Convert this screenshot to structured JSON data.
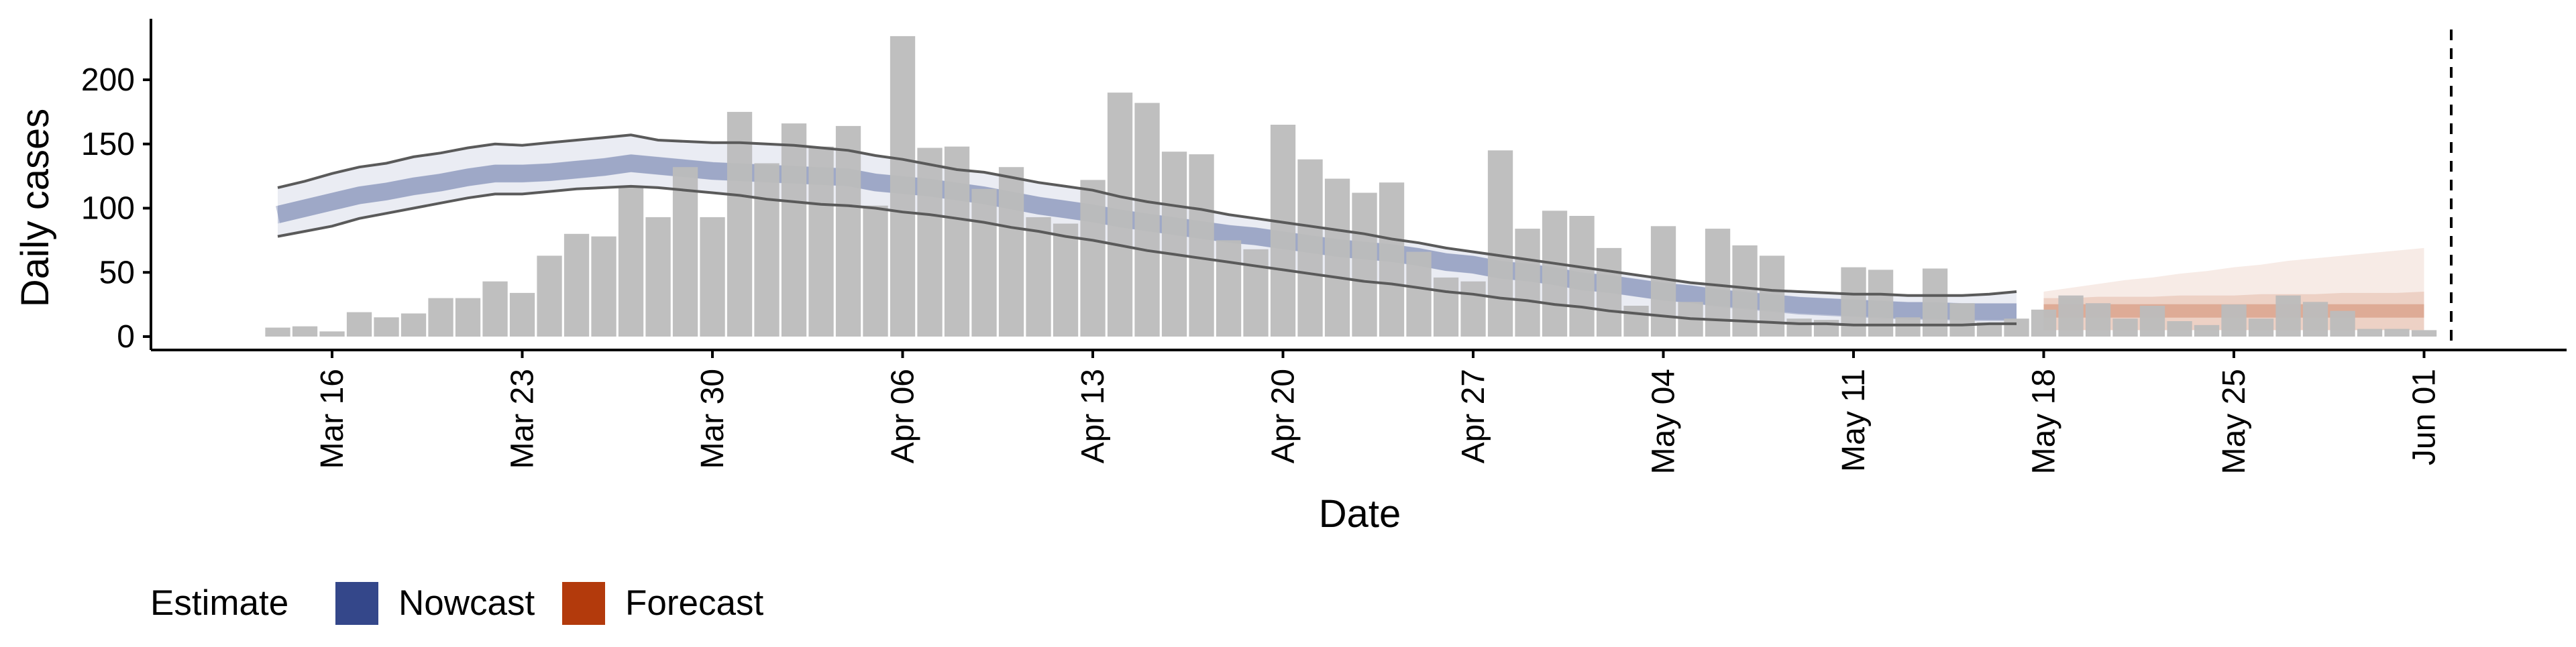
{
  "chart_data": {
    "type": "bar",
    "ylabel": "Daily cases",
    "xlabel": "Date",
    "ylim": [
      0,
      240
    ],
    "yticks": [
      0,
      50,
      100,
      150,
      200
    ],
    "x_start": "Mar 14",
    "xtick_labels": [
      "Mar 16",
      "Mar 23",
      "Mar 30",
      "Apr 06",
      "Apr 13",
      "Apr 20",
      "Apr 27",
      "May 04",
      "May 11",
      "May 18",
      "May 25",
      "Jun 01"
    ],
    "grid": false,
    "vline": {
      "x": "Jun 02",
      "style": "dashed"
    },
    "colors": {
      "nowcast": "#34478a",
      "forecast": "#b33a0c",
      "bars": "#bcbcbc",
      "ci_line": "#5a5a5a"
    },
    "cases": [
      7,
      8,
      4,
      19,
      15,
      18,
      30,
      30,
      43,
      34,
      63,
      80,
      78,
      116,
      93,
      132,
      93,
      175,
      135,
      166,
      148,
      164,
      102,
      234,
      147,
      148,
      115,
      132,
      93,
      88,
      122,
      190,
      182,
      144,
      142,
      75,
      68,
      165,
      138,
      123,
      112,
      120,
      66,
      46,
      43,
      145,
      84,
      98,
      94,
      69,
      24,
      86,
      27,
      84,
      71,
      63,
      14,
      13,
      54,
      52,
      15,
      53,
      26,
      11,
      14,
      21,
      32,
      26,
      14,
      24,
      12,
      9,
      25,
      14,
      32,
      27,
      20,
      6,
      6,
      5
    ],
    "nowcast": {
      "median": [
        95,
        100,
        105,
        110,
        113,
        117,
        120,
        124,
        127,
        127,
        128,
        130,
        132,
        135,
        133,
        131,
        129,
        128,
        127,
        126,
        125,
        124,
        120,
        118,
        116,
        113,
        110,
        106,
        102,
        99,
        96,
        92,
        89,
        86,
        83,
        80,
        78,
        75,
        72,
        69,
        67,
        65,
        62,
        58,
        56,
        52,
        50,
        47,
        43,
        41,
        38,
        35,
        33,
        30,
        28,
        26,
        24,
        23,
        22,
        21,
        20,
        20,
        19,
        19,
        19
      ],
      "inner_low": [
        88,
        93,
        98,
        103,
        106,
        110,
        113,
        117,
        120,
        120,
        121,
        123,
        125,
        128,
        126,
        124,
        122,
        121,
        120,
        119,
        118,
        117,
        113,
        111,
        109,
        106,
        103,
        99,
        95,
        92,
        89,
        85,
        82,
        79,
        76,
        73,
        71,
        68,
        65,
        62,
        60,
        58,
        55,
        51,
        49,
        45,
        43,
        40,
        36,
        34,
        31,
        28,
        26,
        24,
        22,
        20,
        18,
        17,
        16,
        15,
        14,
        14,
        13,
        13,
        13
      ],
      "inner_high": [
        102,
        107,
        112,
        117,
        120,
        124,
        127,
        131,
        134,
        134,
        135,
        137,
        139,
        142,
        140,
        138,
        136,
        135,
        134,
        133,
        132,
        131,
        127,
        125,
        123,
        120,
        117,
        113,
        109,
        106,
        103,
        99,
        96,
        93,
        90,
        87,
        85,
        82,
        79,
        76,
        74,
        72,
        69,
        65,
        63,
        59,
        57,
        54,
        50,
        48,
        45,
        42,
        40,
        37,
        35,
        33,
        31,
        30,
        29,
        28,
        27,
        27,
        26,
        26,
        26
      ],
      "upper": [
        116,
        121,
        127,
        132,
        135,
        140,
        143,
        147,
        150,
        149,
        151,
        153,
        155,
        157,
        153,
        152,
        151,
        151,
        150,
        149,
        147,
        145,
        141,
        138,
        134,
        130,
        128,
        124,
        120,
        117,
        114,
        109,
        105,
        102,
        99,
        95,
        92,
        89,
        86,
        83,
        80,
        76,
        73,
        69,
        66,
        63,
        60,
        57,
        54,
        51,
        48,
        45,
        42,
        40,
        38,
        36,
        35,
        34,
        33,
        33,
        32,
        32,
        32,
        33,
        35
      ],
      "lower": [
        78,
        82,
        86,
        92,
        96,
        100,
        104,
        108,
        111,
        111,
        113,
        115,
        116,
        117,
        116,
        114,
        112,
        110,
        107,
        105,
        103,
        102,
        100,
        97,
        95,
        92,
        89,
        85,
        82,
        78,
        75,
        71,
        67,
        64,
        61,
        58,
        55,
        52,
        49,
        46,
        43,
        41,
        38,
        35,
        33,
        30,
        28,
        25,
        23,
        20,
        18,
        16,
        14,
        13,
        12,
        11,
        10,
        10,
        9,
        9,
        9,
        9,
        9,
        10,
        10
      ]
    },
    "forecast": {
      "start_index": 65,
      "median": [
        20,
        20,
        20,
        20,
        20,
        20,
        20,
        20,
        20,
        20,
        20,
        20,
        20,
        20,
        20
      ],
      "lower": [
        5,
        5,
        5,
        5,
        5,
        5,
        5,
        5,
        5,
        5,
        5,
        5,
        5,
        5,
        5
      ],
      "inner_high": [
        30,
        30,
        31,
        31,
        31,
        32,
        32,
        32,
        33,
        33,
        33,
        34,
        34,
        34,
        35
      ],
      "upper": [
        35,
        38,
        41,
        44,
        46,
        49,
        51,
        54,
        56,
        59,
        61,
        63,
        65,
        67,
        69
      ]
    },
    "legend": {
      "title": "Estimate",
      "items": [
        "Nowcast",
        "Forecast"
      ],
      "position": "bottom"
    }
  }
}
